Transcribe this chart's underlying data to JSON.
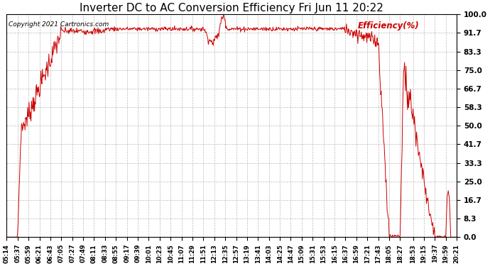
{
  "title": "Inverter DC to AC Conversion Efficiency Fri Jun 11 20:22",
  "title_fontsize": 11,
  "copyright_text": "Copyright 2021 Cartronics.com",
  "legend_label": "Efficiency(%)",
  "line_color": "#cc0000",
  "background_color": "#ffffff",
  "grid_color": "#aaaaaa",
  "ylim": [
    0.0,
    100.0
  ],
  "ytick_values": [
    0.0,
    8.3,
    16.7,
    25.0,
    33.3,
    41.7,
    50.0,
    58.3,
    66.7,
    75.0,
    83.3,
    91.7,
    100.0
  ],
  "xtick_labels": [
    "05:14",
    "05:37",
    "05:59",
    "06:21",
    "06:43",
    "07:05",
    "07:27",
    "07:49",
    "08:11",
    "08:33",
    "08:55",
    "09:17",
    "09:39",
    "10:01",
    "10:23",
    "10:45",
    "11:07",
    "11:29",
    "11:51",
    "12:13",
    "12:35",
    "12:57",
    "13:19",
    "13:41",
    "14:03",
    "14:25",
    "14:47",
    "15:09",
    "15:31",
    "15:53",
    "16:15",
    "16:37",
    "16:59",
    "17:21",
    "17:43",
    "18:05",
    "18:27",
    "18:53",
    "19:15",
    "19:37",
    "19:59",
    "20:21"
  ],
  "total_minutes": 907
}
